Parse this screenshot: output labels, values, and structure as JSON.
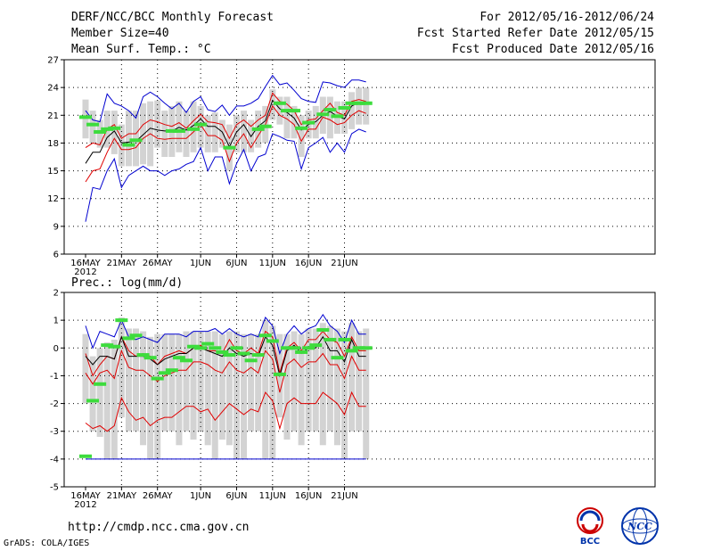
{
  "header": {
    "title": "DERF/NCC/BCC Monthly Forecast",
    "member_size": "Member Size=40",
    "variable": "Mean Surf. Temp.: °C",
    "forecast_period": "For 2012/05/16-2012/06/24",
    "start_date": "Fcst Started Refer Date 2012/05/15",
    "produced_date": "Fcst Produced Date 2012/05/16"
  },
  "footer": {
    "url": "http://cmdp.ncc.cma.gov.cn",
    "grads_credit": "GrADS: COLA/IGES",
    "logo_bcc_text": "BCC",
    "logo_ncc_text": "NCC"
  },
  "colors": {
    "box": "#d3d3d3",
    "green": "#3ddc3d",
    "red": "#e00000",
    "blue": "#0000d0",
    "black": "#000000"
  },
  "chart_data": [
    {
      "type": "line",
      "title": "Mean Surf. Temp.: °C",
      "x_tick_labels": [
        "16MAY",
        "21MAY",
        "26MAY",
        "1JUN",
        "6JUN",
        "11JUN",
        "16JUN",
        "21JUN"
      ],
      "x_year_label": "2012",
      "ylim": [
        6,
        27
      ],
      "yticks": [
        6,
        9,
        12,
        15,
        18,
        21,
        24,
        27
      ],
      "ytick_labels": [
        "6",
        "9",
        "12",
        "15",
        "18",
        "21",
        "24",
        "27"
      ],
      "n_days": 40,
      "series": [
        {
          "name": "max",
          "color": "blue",
          "values": [
            21.5,
            20.5,
            20.3,
            23.3,
            22.3,
            22.0,
            21.5,
            20.7,
            23.0,
            23.5,
            23.0,
            22.3,
            21.7,
            22.3,
            21.3,
            22.5,
            23.0,
            21.6,
            21.4,
            22.1,
            21.0,
            22.0,
            22.0,
            22.3,
            22.8,
            24.1,
            25.3,
            24.3,
            24.5,
            23.7,
            22.8,
            22.5,
            22.4,
            24.6,
            24.5,
            24.2,
            24.0,
            24.8,
            24.8,
            24.6
          ]
        },
        {
          "name": "upper",
          "color": "red",
          "values": [
            17.5,
            18.0,
            17.8,
            19.5,
            20.0,
            18.5,
            19.0,
            19.0,
            20.0,
            20.5,
            20.3,
            20.0,
            19.8,
            20.2,
            19.6,
            20.4,
            21.1,
            20.3,
            20.2,
            20.0,
            18.5,
            20.0,
            20.5,
            19.8,
            20.5,
            21.0,
            23.4,
            22.5,
            22.2,
            21.5,
            20.0,
            20.5,
            20.6,
            21.5,
            22.3,
            21.3,
            21.0,
            22.5,
            22.7,
            22.5
          ]
        },
        {
          "name": "mean",
          "color": "black",
          "values": [
            15.8,
            17.0,
            17.0,
            18.6,
            19.3,
            18.0,
            18.1,
            18.2,
            18.9,
            19.6,
            19.4,
            19.3,
            19.3,
            19.7,
            19.4,
            19.9,
            20.6,
            19.8,
            19.8,
            19.2,
            17.6,
            19.2,
            20.0,
            18.7,
            19.8,
            20.4,
            22.6,
            21.7,
            21.3,
            20.7,
            19.4,
            20.0,
            20.3,
            21.0,
            21.4,
            20.9,
            20.6,
            22.0,
            22.4,
            22.2
          ]
        },
        {
          "name": "lower",
          "color": "red",
          "values": [
            13.8,
            15.0,
            15.2,
            17.0,
            18.5,
            17.3,
            17.3,
            17.5,
            18.5,
            19.0,
            18.5,
            18.4,
            18.5,
            18.5,
            18.5,
            19.2,
            20.0,
            18.8,
            18.8,
            18.3,
            16.0,
            18.0,
            19.0,
            17.5,
            18.8,
            20.0,
            22.0,
            21.0,
            20.6,
            20.0,
            18.2,
            19.5,
            19.5,
            20.8,
            20.5,
            20.0,
            20.2,
            21.0,
            21.5,
            21.2
          ]
        },
        {
          "name": "min",
          "color": "blue",
          "values": [
            9.5,
            13.2,
            13.0,
            15.0,
            16.3,
            13.2,
            14.5,
            15.0,
            15.5,
            15.0,
            15.0,
            14.5,
            15.0,
            15.2,
            15.7,
            16.0,
            17.5,
            15.0,
            16.5,
            16.5,
            13.6,
            15.8,
            17.3,
            15.0,
            16.5,
            16.8,
            19.0,
            18.7,
            18.3,
            18.2,
            15.2,
            17.5,
            18.0,
            18.6,
            17.0,
            18.0,
            17.0,
            19.0,
            19.5,
            19.2
          ]
        },
        {
          "name": "box_top",
          "color": "box",
          "values": [
            22.7,
            21.5,
            20.5,
            21.5,
            21.5,
            20.0,
            21.5,
            21.5,
            22.3,
            22.5,
            22.6,
            21.5,
            22.0,
            22.5,
            21.5,
            22.5,
            22.0,
            21.0,
            21.3,
            20.5,
            20.0,
            21.0,
            21.5,
            20.5,
            21.5,
            22.0,
            23.8,
            23.0,
            23.0,
            22.0,
            21.0,
            21.5,
            22.0,
            23.0,
            23.0,
            22.5,
            22.5,
            23.5,
            24.0,
            24.0
          ]
        },
        {
          "name": "box_bottom",
          "color": "box",
          "values": [
            18.5,
            18.0,
            17.5,
            17.5,
            16.8,
            15.5,
            15.5,
            15.5,
            15.7,
            15.5,
            17.5,
            16.5,
            16.5,
            17.0,
            16.5,
            17.0,
            17.5,
            17.0,
            17.0,
            17.5,
            15.0,
            17.0,
            17.0,
            17.0,
            17.5,
            18.0,
            20.5,
            20.0,
            18.5,
            18.5,
            16.5,
            18.5,
            18.5,
            19.0,
            18.5,
            19.0,
            19.0,
            19.5,
            20.0,
            20.0
          ]
        },
        {
          "name": "green_marker",
          "color": "green",
          "values": [
            20.8,
            20.0,
            19.2,
            19.5,
            19.6,
            null,
            17.8,
            18.3,
            null,
            null,
            null,
            null,
            19.3,
            19.3,
            null,
            19.5,
            20.0,
            null,
            null,
            null,
            17.5,
            null,
            null,
            null,
            19.5,
            19.8,
            null,
            22.3,
            21.5,
            21.5,
            19.6,
            20.2,
            null,
            21.1,
            21.6,
            20.9,
            21.8,
            22.3,
            22.3,
            22.3
          ]
        }
      ]
    },
    {
      "type": "line",
      "title": "Prec.: log(mm/d)",
      "x_tick_labels": [
        "16MAY",
        "21MAY",
        "26MAY",
        "1JUN",
        "6JUN",
        "11JUN",
        "16JUN",
        "21JUN"
      ],
      "x_year_label": "2012",
      "ylim": [
        -5,
        2
      ],
      "yticks": [
        -5,
        -4,
        -3,
        -2,
        -1,
        0,
        1,
        2
      ],
      "ytick_labels": [
        "-5",
        "-4",
        "-3",
        "-2",
        "-1",
        "0",
        "1",
        "2"
      ],
      "n_days": 40,
      "series": [
        {
          "name": "max",
          "color": "blue",
          "values": [
            0.8,
            0.0,
            0.6,
            0.5,
            0.4,
            1.0,
            0.4,
            0.3,
            0.4,
            0.3,
            0.2,
            0.5,
            0.5,
            0.5,
            0.4,
            0.6,
            0.6,
            0.6,
            0.7,
            0.5,
            0.7,
            0.5,
            0.4,
            0.5,
            0.4,
            1.1,
            0.8,
            -0.2,
            0.5,
            0.8,
            0.5,
            0.7,
            0.8,
            1.2,
            0.8,
            0.6,
            0.2,
            1.0,
            0.5,
            0.5
          ]
        },
        {
          "name": "upper",
          "color": "red",
          "values": [
            -0.2,
            -1.0,
            -0.6,
            -0.3,
            -0.4,
            0.4,
            -0.1,
            -0.3,
            -0.2,
            -0.3,
            -0.6,
            -0.3,
            -0.2,
            -0.1,
            -0.2,
            0.0,
            0.1,
            -0.1,
            -0.1,
            -0.2,
            0.3,
            -0.1,
            -0.2,
            0.0,
            -0.2,
            0.6,
            0.4,
            -0.9,
            0.0,
            0.2,
            -0.1,
            0.3,
            0.3,
            0.6,
            0.3,
            0.2,
            -0.3,
            0.4,
            -0.1,
            -0.1
          ]
        },
        {
          "name": "mean",
          "color": "black",
          "values": [
            -0.3,
            -0.6,
            -0.3,
            -0.3,
            -0.4,
            0.4,
            -0.3,
            -0.3,
            -0.3,
            -0.4,
            -0.6,
            -0.4,
            -0.3,
            -0.2,
            -0.2,
            0.0,
            0.0,
            -0.1,
            -0.2,
            -0.3,
            0.0,
            -0.2,
            -0.3,
            -0.2,
            -0.3,
            0.4,
            0.1,
            -1.0,
            -0.1,
            0.1,
            -0.2,
            0.0,
            0.0,
            0.4,
            -0.1,
            -0.1,
            -0.5,
            0.3,
            -0.3,
            -0.3
          ]
        },
        {
          "name": "lower",
          "color": "red",
          "values": [
            -0.9,
            -1.3,
            -0.9,
            -0.8,
            -1.1,
            -0.1,
            -0.7,
            -0.8,
            -0.8,
            -1.0,
            -1.2,
            -1.0,
            -0.9,
            -0.8,
            -0.8,
            -0.5,
            -0.5,
            -0.6,
            -0.8,
            -0.9,
            -0.5,
            -0.8,
            -0.9,
            -0.7,
            -0.9,
            -0.1,
            -0.4,
            -1.6,
            -0.6,
            -0.4,
            -0.7,
            -0.5,
            -0.5,
            -0.2,
            -0.6,
            -0.6,
            -1.1,
            -0.3,
            -0.8,
            -0.8
          ]
        },
        {
          "name": "min",
          "color": "red",
          "values": [
            -2.7,
            -2.9,
            -2.8,
            -3.0,
            -2.8,
            -1.8,
            -2.3,
            -2.6,
            -2.5,
            -2.8,
            -2.6,
            -2.5,
            -2.5,
            -2.3,
            -2.1,
            -2.1,
            -2.3,
            -2.2,
            -2.6,
            -2.3,
            -2.0,
            -2.2,
            -2.4,
            -2.2,
            -2.3,
            -1.6,
            -1.9,
            -2.9,
            -2.0,
            -1.8,
            -2.0,
            -2.0,
            -2.0,
            -1.6,
            -1.8,
            -2.0,
            -2.4,
            -1.6,
            -2.1,
            -2.1
          ]
        },
        {
          "name": "box_top",
          "color": "box",
          "values": [
            0.5,
            -0.3,
            0.0,
            0.2,
            0.3,
            1.1,
            0.7,
            0.7,
            0.6,
            0.4,
            0.5,
            0.5,
            0.5,
            0.5,
            0.6,
            0.6,
            0.6,
            0.6,
            0.6,
            0.5,
            0.6,
            0.6,
            0.5,
            0.5,
            0.5,
            1.0,
            0.8,
            0.5,
            0.5,
            0.6,
            0.5,
            0.7,
            0.7,
            0.9,
            0.8,
            0.7,
            0.6,
            0.9,
            0.6,
            0.7
          ]
        },
        {
          "name": "box_bottom",
          "color": "box",
          "values": [
            -2.0,
            -3.0,
            -3.2,
            -4.0,
            -4.0,
            -2.5,
            -3.0,
            -3.0,
            -3.5,
            -4.0,
            -4.0,
            -3.0,
            -3.0,
            -3.5,
            -3.0,
            -3.3,
            -3.0,
            -3.5,
            -4.0,
            -3.3,
            -3.5,
            -4.0,
            -4.0,
            -3.0,
            -3.0,
            -4.0,
            -4.0,
            -2.5,
            -3.3,
            -3.0,
            -3.5,
            -3.0,
            -3.0,
            -3.5,
            -3.0,
            -3.5,
            -4.0,
            -3.0,
            -3.0,
            -4.0
          ]
        },
        {
          "name": "green_marker",
          "color": "green",
          "values": [
            -3.9,
            -1.9,
            -1.3,
            0.1,
            0.05,
            1.0,
            0.35,
            0.45,
            -0.25,
            -0.35,
            -1.1,
            -0.9,
            -0.8,
            -0.35,
            -0.45,
            0.05,
            0.0,
            0.15,
            0.0,
            -0.15,
            -0.25,
            0.0,
            -0.2,
            -0.45,
            -0.25,
            0.45,
            0.25,
            -0.95,
            0.0,
            0.0,
            -0.15,
            0.0,
            0.1,
            0.65,
            0.3,
            -0.35,
            0.3,
            -0.1,
            0.0,
            0.0
          ]
        },
        {
          "name": "floor",
          "color": "blue",
          "values": [
            -4.0,
            -4.0,
            -4.0,
            -4.0,
            -4.0,
            -4.0,
            -4.0,
            -4.0,
            -4.0,
            -4.0,
            -4.0,
            -4.0,
            -4.0,
            -4.0,
            -4.0,
            -4.0,
            -4.0,
            -4.0,
            -4.0,
            -4.0,
            -4.0,
            -4.0,
            -4.0,
            -4.0,
            -4.0,
            -4.0,
            -4.0,
            -4.0,
            -4.0,
            -4.0,
            -4.0,
            -4.0,
            -4.0,
            -4.0,
            -4.0,
            -4.0,
            -4.0,
            -4.0,
            -4.0,
            -4.0
          ]
        }
      ]
    }
  ]
}
